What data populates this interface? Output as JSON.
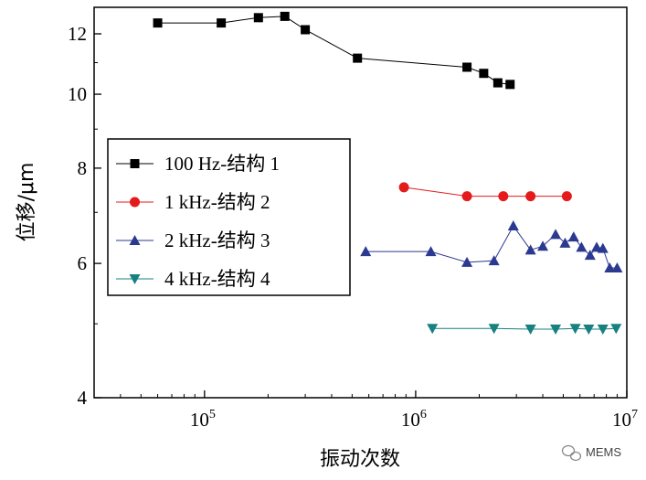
{
  "chart_data": {
    "type": "line",
    "xscale": "log",
    "yscale": "log",
    "xlim": [
      30000,
      10000000
    ],
    "ylim": [
      4,
      13
    ],
    "xticks": [
      {
        "value": 100000,
        "base": "10",
        "exp": "5"
      },
      {
        "value": 1000000,
        "base": "10",
        "exp": "6"
      },
      {
        "value": 10000000,
        "base": "10",
        "exp": "7"
      }
    ],
    "yticks": [
      {
        "value": 4,
        "label": "4"
      },
      {
        "value": 6,
        "label": "6"
      },
      {
        "value": 8,
        "label": "8"
      },
      {
        "value": 10,
        "label": "10"
      },
      {
        "value": 12,
        "label": "12"
      }
    ],
    "xlabel": "振动次数",
    "ylabel": "位移/μm",
    "legend_position": "center-left",
    "series": [
      {
        "name": "100 Hz-结构 1",
        "color": "#000000",
        "marker": "square",
        "x": [
          60000,
          120000,
          180000,
          240000,
          300000,
          530000,
          1750000,
          2100000,
          2450000,
          2800000
        ],
        "y": [
          12.4,
          12.4,
          12.6,
          12.65,
          12.15,
          11.15,
          10.85,
          10.65,
          10.35,
          10.3
        ]
      },
      {
        "name": "1 kHz-结构 2",
        "color": "#e41a1c",
        "marker": "circle",
        "x": [
          880000,
          1750000,
          2600000,
          3500000,
          5200000
        ],
        "y": [
          7.55,
          7.35,
          7.35,
          7.35,
          7.35
        ]
      },
      {
        "name": "2 kHz-结构 3",
        "color": "#2b3990",
        "marker": "triangle-up",
        "x": [
          580000,
          1180000,
          1750000,
          2350000,
          2900000,
          3500000,
          4000000,
          4600000,
          5100000,
          5600000,
          6100000,
          6700000,
          7200000,
          7700000,
          8300000,
          9000000
        ],
        "y": [
          6.22,
          6.22,
          6.02,
          6.05,
          6.72,
          6.25,
          6.32,
          6.55,
          6.38,
          6.5,
          6.3,
          6.15,
          6.3,
          6.28,
          5.92,
          5.92
        ]
      },
      {
        "name": "4 kHz-结构 4",
        "color": "#178080",
        "marker": "triangle-down",
        "x": [
          1200000,
          2350000,
          3500000,
          4600000,
          5700000,
          6600000,
          7700000,
          8900000
        ],
        "y": [
          4.93,
          4.93,
          4.92,
          4.92,
          4.93,
          4.92,
          4.92,
          4.93
        ]
      }
    ]
  },
  "watermark": {
    "icon": "wechat-icon",
    "text": "MEMS"
  }
}
